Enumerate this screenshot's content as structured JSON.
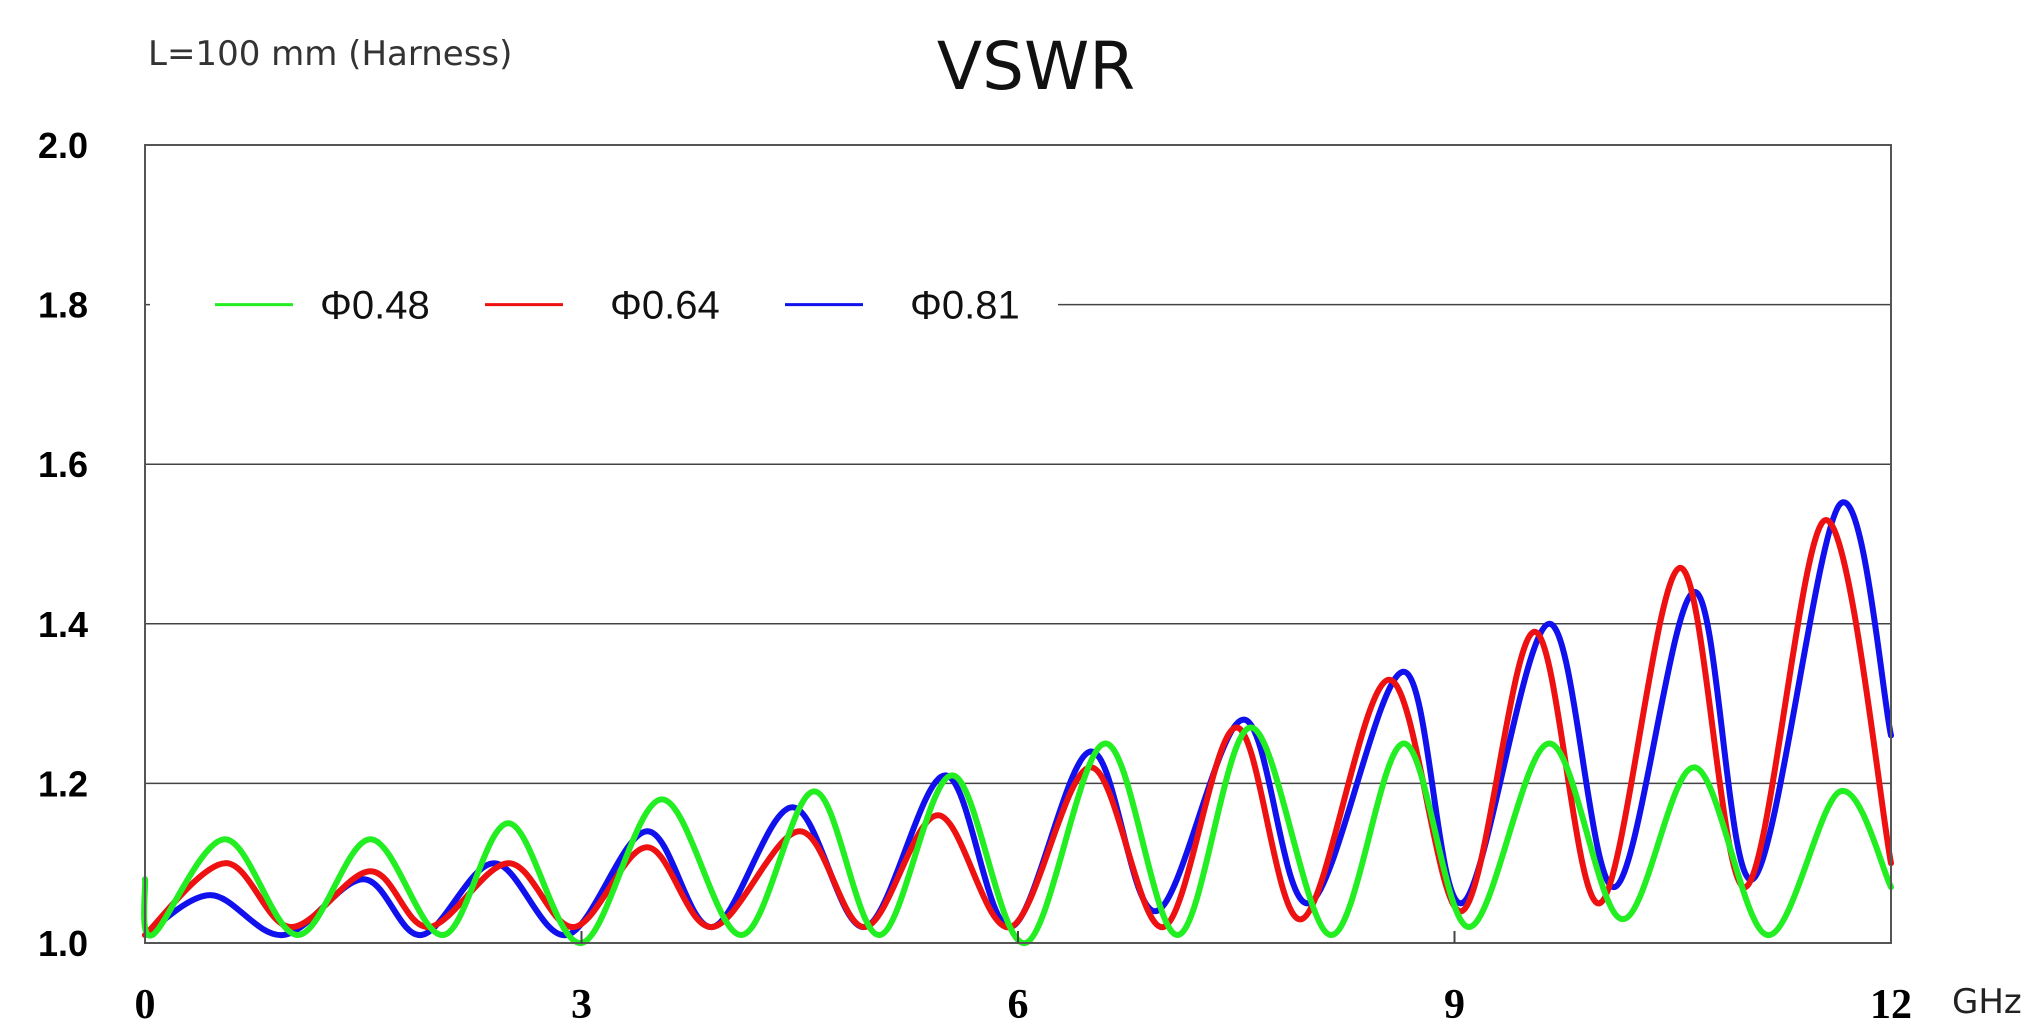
{
  "chart_data": {
    "type": "line",
    "title": "VSWR",
    "annotation": "L=100 mm (Harness)",
    "x_unit": "GHz",
    "xlim": [
      0,
      12
    ],
    "ylim": [
      1.0,
      2.0
    ],
    "xticks": [
      0,
      3,
      6,
      9,
      12
    ],
    "yticks": [
      "1.0",
      "1.2",
      "1.4",
      "1.6",
      "1.8",
      "2.0"
    ],
    "grid": "horizontal",
    "legend_position": "top-left",
    "colors": {
      "green": "#22ee22",
      "red": "#ee1111",
      "blue": "#1111ee"
    },
    "series": [
      {
        "name": "Φ0.48",
        "color": "#22ee22",
        "x": [
          0.0,
          0.05,
          0.55,
          1.05,
          1.55,
          2.05,
          2.5,
          3.0,
          3.55,
          4.1,
          4.6,
          5.05,
          5.55,
          6.05,
          6.6,
          7.1,
          7.6,
          8.15,
          8.65,
          9.1,
          9.65,
          10.15,
          10.65,
          11.15,
          11.65,
          12.0
        ],
        "y": [
          1.08,
          1.01,
          1.13,
          1.01,
          1.13,
          1.01,
          1.15,
          1.0,
          1.18,
          1.01,
          1.19,
          1.01,
          1.21,
          1.0,
          1.25,
          1.01,
          1.27,
          1.01,
          1.25,
          1.02,
          1.25,
          1.03,
          1.22,
          1.01,
          1.19,
          1.07
        ]
      },
      {
        "name": "Φ0.64",
        "color": "#ee1111",
        "x": [
          0.0,
          0.55,
          1.0,
          1.55,
          1.95,
          2.5,
          2.95,
          3.45,
          3.9,
          4.5,
          4.95,
          5.45,
          5.95,
          6.5,
          7.0,
          7.5,
          7.95,
          8.55,
          9.05,
          9.55,
          10.0,
          10.55,
          11.0,
          11.55,
          12.0
        ],
        "y": [
          1.01,
          1.1,
          1.02,
          1.09,
          1.02,
          1.1,
          1.02,
          1.12,
          1.02,
          1.14,
          1.02,
          1.16,
          1.02,
          1.22,
          1.02,
          1.27,
          1.03,
          1.33,
          1.04,
          1.39,
          1.05,
          1.47,
          1.07,
          1.53,
          1.1
        ]
      },
      {
        "name": "Φ0.81",
        "color": "#1111ee",
        "x": [
          0.0,
          0.45,
          0.95,
          1.5,
          1.9,
          2.4,
          2.9,
          3.45,
          3.9,
          4.45,
          4.95,
          5.5,
          5.95,
          6.5,
          6.95,
          7.55,
          8.0,
          8.65,
          9.05,
          9.65,
          10.1,
          10.65,
          11.05,
          11.65,
          12.0
        ],
        "y": [
          1.01,
          1.06,
          1.01,
          1.08,
          1.01,
          1.1,
          1.01,
          1.14,
          1.02,
          1.17,
          1.02,
          1.21,
          1.02,
          1.24,
          1.04,
          1.28,
          1.05,
          1.34,
          1.05,
          1.4,
          1.07,
          1.44,
          1.08,
          1.55,
          1.26
        ]
      }
    ]
  }
}
